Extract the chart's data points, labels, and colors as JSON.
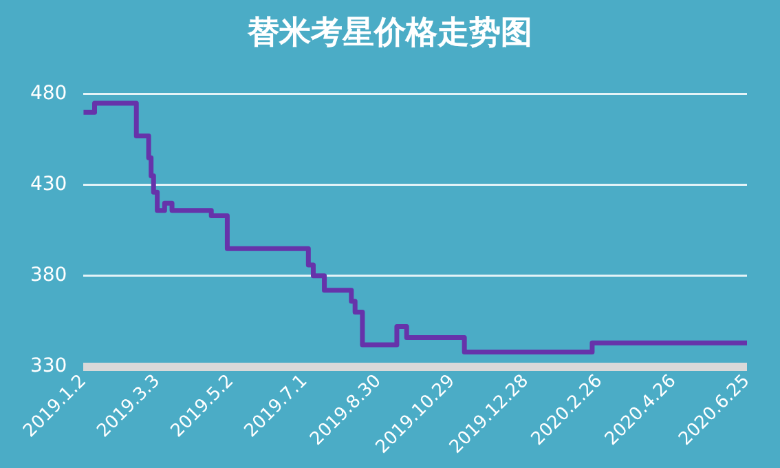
{
  "chart_data": {
    "type": "step",
    "title": "替米考星价格走势图",
    "x": [
      "2019-01-02",
      "2019-01-11",
      "2019-02-14",
      "2019-02-24",
      "2019-02-26",
      "2019-02-28",
      "2019-03-03",
      "2019-03-09",
      "2019-03-15",
      "2019-04-16",
      "2019-04-29",
      "2019-07-03",
      "2019-07-04",
      "2019-07-08",
      "2019-07-17",
      "2019-08-08",
      "2019-08-11",
      "2019-08-14",
      "2019-08-17",
      "2019-09-12",
      "2019-09-14",
      "2019-09-17",
      "2019-09-22",
      "2019-11-08",
      "2019-12-16",
      "2020-02-20",
      "2020-06-25"
    ],
    "series": [
      {
        "color": "#6633aa",
        "values": [
          470,
          475,
          457,
          445,
          435,
          426,
          416,
          420,
          416,
          413,
          395,
          395,
          386,
          380,
          372,
          366,
          360,
          360,
          342,
          342,
          352,
          352,
          346,
          338,
          338,
          343,
          343
        ]
      }
    ],
    "xlim": [
      "2019-01-02",
      "2020-06-25"
    ],
    "xticks": [
      {
        "value": "2019-01-02",
        "label": "2019.1.2"
      },
      {
        "value": "2019-03-03",
        "label": "2019.3.3"
      },
      {
        "value": "2019-05-02",
        "label": "2019.5.2"
      },
      {
        "value": "2019-07-01",
        "label": "2019.7.1"
      },
      {
        "value": "2019-08-30",
        "label": "2019.8.30"
      },
      {
        "value": "2019-10-29",
        "label": "2019.10.29"
      },
      {
        "value": "2019-12-28",
        "label": "2019.12.28"
      },
      {
        "value": "2020-02-26",
        "label": "2020.2.26"
      },
      {
        "value": "2020-04-26",
        "label": "2020.4.26"
      },
      {
        "value": "2020-06-25",
        "label": "2020.6.25"
      }
    ],
    "ylim": [
      330,
      480
    ],
    "yticks": [
      330,
      380,
      430,
      480
    ],
    "grid": "y",
    "legend": false,
    "marker": "none",
    "line_style": "solid"
  }
}
